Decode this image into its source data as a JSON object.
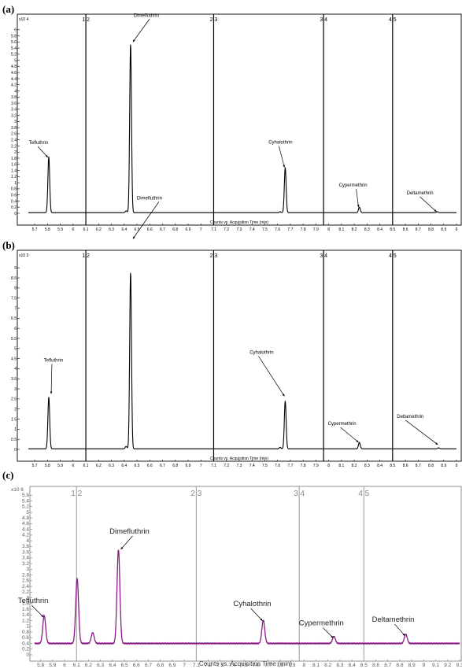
{
  "chart_data": [
    {
      "type": "line",
      "panel_label": "(a)",
      "xlabel": "Counts vs. Acquisition Time (min)",
      "ylabel_multiplier": "x10 4",
      "xlim": [
        5.65,
        9.0
      ],
      "ylim": [
        0,
        6.2
      ],
      "x_ticks": [
        "5.7",
        "5.8",
        "5.9",
        "6",
        "6.1",
        "6.2",
        "6.3",
        "6.4",
        "6.5",
        "6.6",
        "6.7",
        "6.8",
        "6.9",
        "7",
        "7.1",
        "7.2",
        "7.3",
        "7.4",
        "7.5",
        "7.6",
        "7.7",
        "7.8",
        "7.9",
        "8",
        "8.1",
        "8.2",
        "8.3",
        "8.4",
        "8.5",
        "8.6",
        "8.7",
        "8.8",
        "8.9",
        "9"
      ],
      "y_ticks": [
        "0",
        "0.2",
        "0.4",
        "0.6",
        "0.8",
        "1",
        "1.2",
        "1.4",
        "1.6",
        "1.8",
        "2",
        "2.2",
        "2.4",
        "2.6",
        "2.8",
        "3",
        "3.2",
        "3.4",
        "3.6",
        "3.8",
        "4",
        "4.2",
        "4.4",
        "4.6",
        "4.8",
        "5",
        "5.2",
        "5.4",
        "5.6",
        "5.8",
        "6"
      ],
      "segment_markers": [
        {
          "x": 6.1,
          "label": "1 2"
        },
        {
          "x": 7.1,
          "label": "2 3"
        },
        {
          "x": 7.96,
          "label": "3 4"
        },
        {
          "x": 8.5,
          "label": "4 5"
        }
      ],
      "peaks": [
        {
          "name": "Tefluthrin",
          "x": 5.81,
          "y": 1.85
        },
        {
          "name": "",
          "x": 6.415,
          "y": 0.08
        },
        {
          "name": "Dimefluthrin",
          "x": 6.45,
          "y": 5.55
        },
        {
          "name": "",
          "x": 7.62,
          "y": 0.05
        },
        {
          "name": "Cyhalothrin",
          "x": 7.66,
          "y": 1.5
        },
        {
          "name": "Cypermethrin",
          "x": 8.24,
          "y": 0.2
        },
        {
          "name": "Deltamethrin",
          "x": 8.85,
          "y": 0.05
        }
      ],
      "baseline": 0.02,
      "color": "#000000"
    },
    {
      "type": "line",
      "panel_label": "(b)",
      "xlabel": "Counts vs. Acquisition Time (min)",
      "ylabel_multiplier": "x10 3",
      "xlim": [
        5.65,
        9.0
      ],
      "ylim": [
        0,
        9.4
      ],
      "x_ticks": [
        "5.7",
        "5.8",
        "5.9",
        "6",
        "6.1",
        "6.2",
        "6.3",
        "6.4",
        "6.5",
        "6.6",
        "6.7",
        "6.8",
        "6.9",
        "7",
        "7.1",
        "7.2",
        "7.3",
        "7.4",
        "7.5",
        "7.6",
        "7.7",
        "7.8",
        "7.9",
        "8",
        "8.1",
        "8.2",
        "8.3",
        "8.4",
        "8.5",
        "8.6",
        "8.7",
        "8.8",
        "8.9",
        "9"
      ],
      "y_ticks": [
        "0",
        "0.5",
        "1",
        "1.5",
        "2",
        "2.5",
        "3",
        "3.5",
        "4",
        "4.5",
        "5",
        "5.5",
        "6",
        "6.5",
        "7",
        "7.5",
        "8",
        "8.5",
        "9"
      ],
      "segment_markers": [
        {
          "x": 6.1,
          "label": "1 2"
        },
        {
          "x": 7.1,
          "label": "2 3"
        },
        {
          "x": 7.96,
          "label": "3 4"
        },
        {
          "x": 8.5,
          "label": "4 5"
        }
      ],
      "peaks": [
        {
          "name": "Tefluthrin",
          "x": 5.81,
          "y": 2.6
        },
        {
          "name": "",
          "x": 6.415,
          "y": 0.15
        },
        {
          "name": "Dimefluthrin",
          "x": 6.45,
          "y": 8.8
        },
        {
          "name": "",
          "x": 7.62,
          "y": 0.1
        },
        {
          "name": "Cyhalothrin",
          "x": 7.66,
          "y": 2.4
        },
        {
          "name": "Cypermethrin",
          "x": 8.24,
          "y": 0.35
        },
        {
          "name": "Deltamethrin",
          "x": 8.86,
          "y": 0.08
        }
      ],
      "baseline": 0.03,
      "color": "#000000"
    },
    {
      "type": "line",
      "panel_label": "(c)",
      "xlabel": "Counts vs. Acquisition Time (min)",
      "ylabel_multiplier": "x10 6",
      "xlim": [
        5.75,
        9.3
      ],
      "ylim": [
        0,
        5.8
      ],
      "x_ticks": [
        "5.8",
        "5.9",
        "6",
        "6.1",
        "6.2",
        "6.3",
        "6.4",
        "6.5",
        "6.6",
        "6.7",
        "6.8",
        "6.9",
        "7",
        "7.1",
        "7.2",
        "7.3",
        "7.4",
        "7.5",
        "7.6",
        "7.7",
        "7.8",
        "7.9",
        "8",
        "8.1",
        "8.2",
        "8.3",
        "8.4",
        "8.5",
        "8.6",
        "8.7",
        "8.8",
        "8.9",
        "9",
        "9.1",
        "9.2",
        "9.3"
      ],
      "y_ticks": [
        "0",
        "0.2",
        "0.4",
        "0.6",
        "0.8",
        "1",
        "1.2",
        "1.4",
        "1.6",
        "1.8",
        "2",
        "2.2",
        "2.4",
        "2.6",
        "2.8",
        "3",
        "3.2",
        "3.4",
        "3.6",
        "3.8",
        "4",
        "4.2",
        "4.4",
        "4.6",
        "4.8",
        "5",
        "5.2",
        "5.4",
        "5.6"
      ],
      "segment_markers": [
        {
          "x": 6.1,
          "label": "1 2"
        },
        {
          "x": 7.1,
          "label": "2 3"
        },
        {
          "x": 7.96,
          "label": "3 4"
        },
        {
          "x": 8.5,
          "label": "4 5"
        }
      ],
      "peaks": [
        {
          "name": "Tefluthrin",
          "x": 5.83,
          "y": 1.38
        },
        {
          "name": "",
          "x": 6.105,
          "y": 2.68
        },
        {
          "name": "",
          "x": 6.235,
          "y": 0.78
        },
        {
          "name": "Dimefluthrin",
          "x": 6.45,
          "y": 3.7
        },
        {
          "name": "Cyhalothrin",
          "x": 7.66,
          "y": 1.22
        },
        {
          "name": "Cypermethrin",
          "x": 8.25,
          "y": 0.65
        },
        {
          "name": "Deltamethrin",
          "x": 8.85,
          "y": 0.72
        }
      ],
      "baseline": 0.4,
      "color": "#8b1a89"
    }
  ]
}
